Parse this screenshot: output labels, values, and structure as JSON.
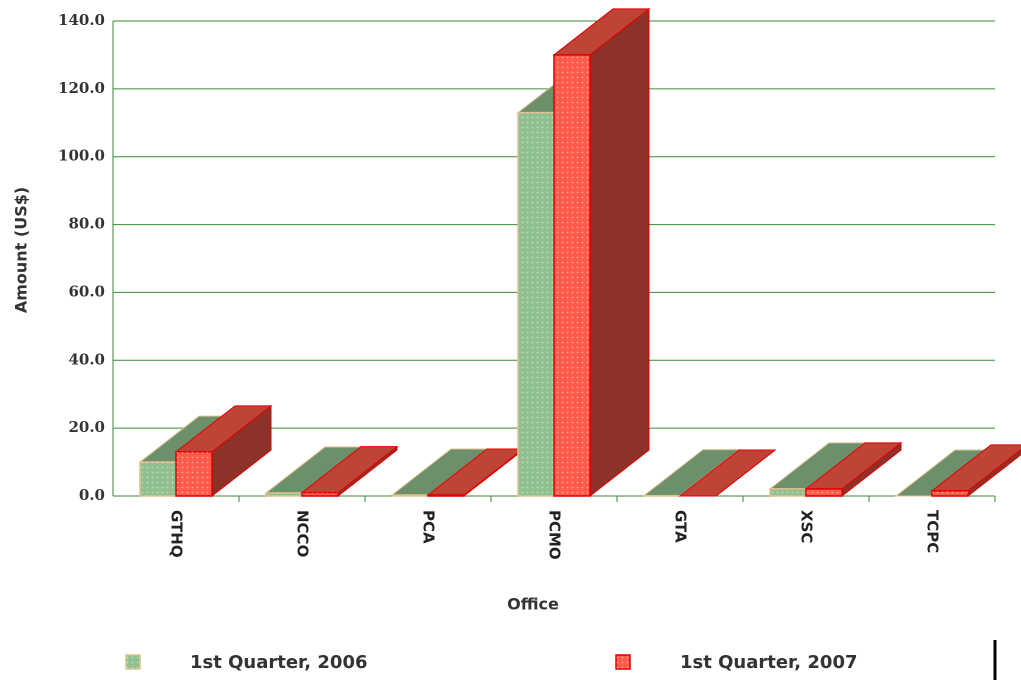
{
  "chart_data": {
    "type": "bar3d",
    "x_label": "Office",
    "y_label": "Amount (US$)",
    "categories": [
      "GTHQ",
      "NCCO",
      "PCA",
      "PCMO",
      "GTA",
      "XSC",
      "TCPC"
    ],
    "series": [
      {
        "name": "1st Quarter, 2006",
        "color": "#8fc08f",
        "values": [
          10.0,
          0.9,
          0.3,
          113.0,
          0.1,
          2.1,
          0.0
        ]
      },
      {
        "name": "1st Quarter, 2007",
        "color": "#ff5a4a",
        "values": [
          13.0,
          1.0,
          0.3,
          130.0,
          0.0,
          2.1,
          1.5
        ]
      }
    ],
    "ylim": [
      0,
      140
    ],
    "yticks": [
      {
        "value": 0,
        "label": "0.0"
      },
      {
        "value": 20,
        "label": "20.0"
      },
      {
        "value": 40,
        "label": "40.0"
      },
      {
        "value": 60,
        "label": "60.0"
      },
      {
        "value": 80,
        "label": "80.0"
      },
      {
        "value": 100,
        "label": "100.0"
      },
      {
        "value": 120,
        "label": "120.0"
      },
      {
        "value": 140,
        "label": "140.0"
      }
    ],
    "grid": true
  }
}
